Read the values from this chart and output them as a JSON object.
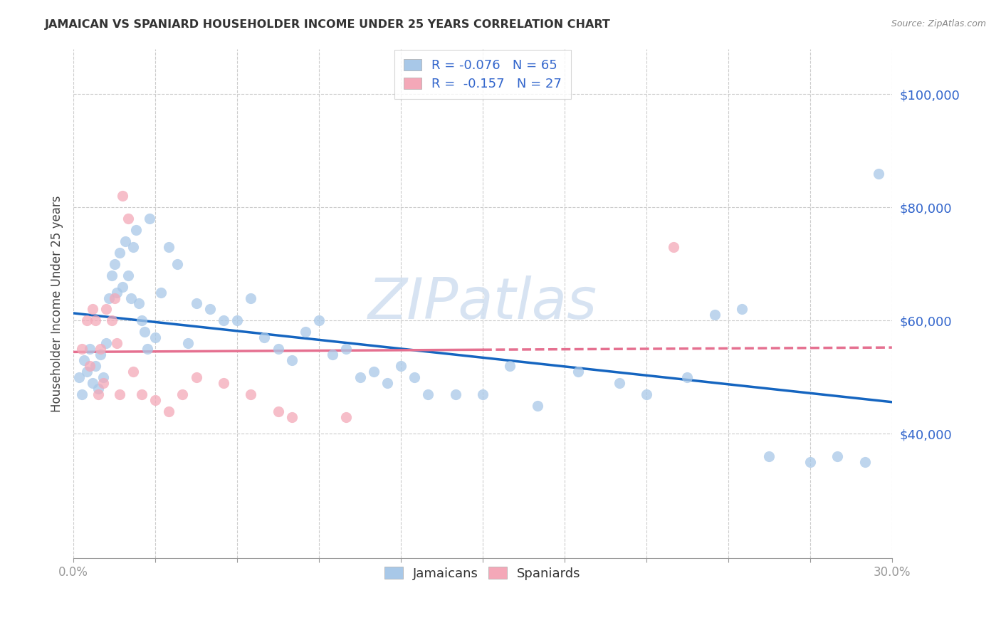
{
  "title": "JAMAICAN VS SPANIARD HOUSEHOLDER INCOME UNDER 25 YEARS CORRELATION CHART",
  "source": "Source: ZipAtlas.com",
  "ylabel": "Householder Income Under 25 years",
  "ytick_labels": [
    "$100,000",
    "$80,000",
    "$60,000",
    "$40,000"
  ],
  "ytick_values": [
    100000,
    80000,
    60000,
    40000
  ],
  "xlim": [
    0.0,
    30.0
  ],
  "ylim": [
    18000,
    108000
  ],
  "legend_r_n": [
    {
      "label_r": "R = -0.076",
      "label_n": "N = 65",
      "color": "#a8c8e8"
    },
    {
      "label_r": "R =  -0.157",
      "label_n": "N = 27",
      "color": "#f4a8b8"
    }
  ],
  "watermark": "ZIPatlas",
  "jamaican_color": "#a8c8e8",
  "spaniard_color": "#f4a8b8",
  "trend_jamaican_color": "#1565c0",
  "trend_spaniard_color": "#e57090",
  "jamaican_x": [
    0.2,
    0.3,
    0.4,
    0.5,
    0.6,
    0.7,
    0.8,
    0.9,
    1.0,
    1.1,
    1.2,
    1.3,
    1.4,
    1.5,
    1.6,
    1.7,
    1.8,
    1.9,
    2.0,
    2.1,
    2.2,
    2.3,
    2.4,
    2.5,
    2.6,
    2.7,
    2.8,
    3.0,
    3.2,
    3.5,
    3.8,
    4.2,
    4.5,
    5.0,
    5.5,
    6.0,
    6.5,
    7.0,
    7.5,
    8.0,
    8.5,
    9.0,
    9.5,
    10.0,
    10.5,
    11.0,
    11.5,
    12.0,
    12.5,
    13.0,
    14.0,
    15.0,
    16.0,
    17.0,
    18.5,
    20.0,
    21.0,
    22.5,
    23.5,
    24.5,
    25.5,
    27.0,
    28.0,
    29.0,
    29.5
  ],
  "jamaican_y": [
    50000,
    47000,
    53000,
    51000,
    55000,
    49000,
    52000,
    48000,
    54000,
    50000,
    56000,
    64000,
    68000,
    70000,
    65000,
    72000,
    66000,
    74000,
    68000,
    64000,
    73000,
    76000,
    63000,
    60000,
    58000,
    55000,
    78000,
    57000,
    65000,
    73000,
    70000,
    56000,
    63000,
    62000,
    60000,
    60000,
    64000,
    57000,
    55000,
    53000,
    58000,
    60000,
    54000,
    55000,
    50000,
    51000,
    49000,
    52000,
    50000,
    47000,
    47000,
    47000,
    52000,
    45000,
    51000,
    49000,
    47000,
    50000,
    61000,
    62000,
    36000,
    35000,
    36000,
    35000,
    86000
  ],
  "spaniard_x": [
    0.3,
    0.5,
    0.6,
    0.7,
    0.8,
    0.9,
    1.0,
    1.1,
    1.2,
    1.4,
    1.5,
    1.6,
    1.7,
    1.8,
    2.0,
    2.2,
    2.5,
    3.0,
    3.5,
    4.0,
    4.5,
    5.5,
    6.5,
    7.5,
    8.0,
    10.0,
    22.0
  ],
  "spaniard_y": [
    55000,
    60000,
    52000,
    62000,
    60000,
    47000,
    55000,
    49000,
    62000,
    60000,
    64000,
    56000,
    47000,
    82000,
    78000,
    51000,
    47000,
    46000,
    44000,
    47000,
    50000,
    49000,
    47000,
    44000,
    43000,
    43000,
    73000
  ],
  "marker_size": 120,
  "alpha": 0.75,
  "trend_solid_xmax_spaniard": 15.0
}
